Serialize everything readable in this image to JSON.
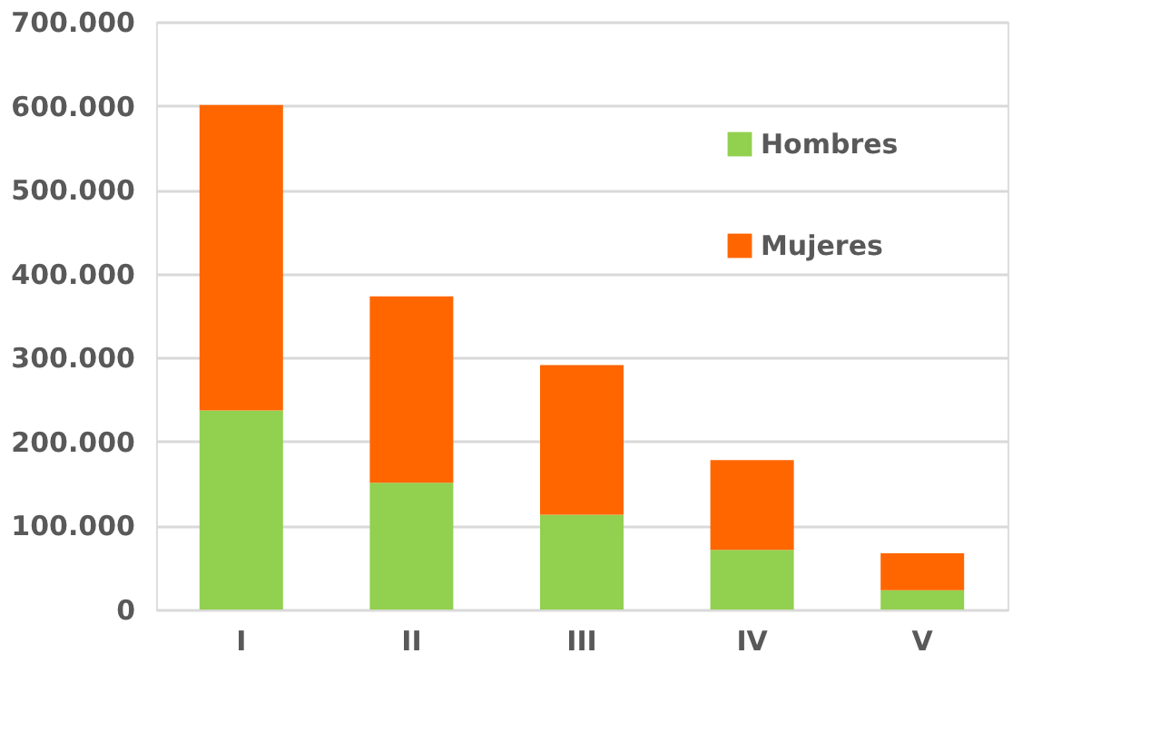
{
  "chart_data": {
    "type": "bar",
    "stacked": true,
    "categories": [
      "I",
      "II",
      "III",
      "IV",
      "V"
    ],
    "series": [
      {
        "name": "Hombres",
        "color": "#92d050",
        "values": [
          237000,
          151000,
          113000,
          71000,
          23000
        ]
      },
      {
        "name": "Mujeres",
        "color": "#ff6600",
        "values": [
          364000,
          222000,
          178000,
          107000,
          44000
        ]
      }
    ],
    "ylim": [
      0,
      700000
    ],
    "yticks": [
      {
        "value": 0,
        "label": "0"
      },
      {
        "value": 100000,
        "label": "100.000"
      },
      {
        "value": 200000,
        "label": "200.000"
      },
      {
        "value": 300000,
        "label": "300.000"
      },
      {
        "value": 400000,
        "label": "400.000"
      },
      {
        "value": 500000,
        "label": "500.000"
      },
      {
        "value": 600000,
        "label": "600.000"
      },
      {
        "value": 700000,
        "label": "700.000"
      }
    ],
    "grid": "y",
    "legend": "top right"
  }
}
